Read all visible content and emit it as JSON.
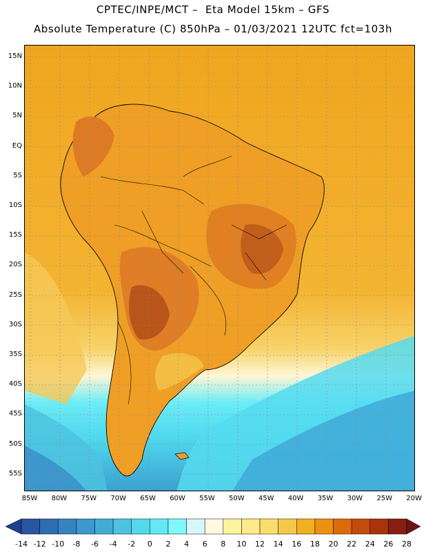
{
  "header": {
    "line1": "CPTEC/INPE/MCT –  Eta Model 15km – GFS",
    "line2": "Absolute Temperature (C) 850hPa – 01/03/2021 12UTC fct=103h"
  },
  "map": {
    "variable": "Absolute Temperature (C) 850hPa",
    "latitude_labels": [
      "15N",
      "10N",
      "5N",
      "EQ",
      "5S",
      "10S",
      "15S",
      "20S",
      "25S",
      "30S",
      "35S",
      "40S",
      "45S",
      "50S",
      "55S"
    ],
    "longitude_labels": [
      "85W",
      "80W",
      "75W",
      "70W",
      "65W",
      "60W",
      "55W",
      "50W",
      "45W",
      "40W",
      "35W",
      "30W",
      "25W",
      "20W"
    ],
    "colors": {
      "cold_ocean": "#3b9fd0",
      "cyan": "#4fe8f2",
      "pale": "#fff6d6",
      "warm": "#f5c14a",
      "base": "#f0a51e",
      "hot": "#e07818",
      "hottest": "#b4500f"
    }
  },
  "colorbar": {
    "labels": [
      "-14",
      "-12",
      "-10",
      "-8",
      "-6",
      "-4",
      "-2",
      "0",
      "2",
      "4",
      "6",
      "8",
      "10",
      "12",
      "14",
      "16",
      "18",
      "20",
      "22",
      "24",
      "26",
      "28"
    ],
    "colors": [
      "#1f3f8f",
      "#2856a0",
      "#2f6db2",
      "#3584c0",
      "#3b99cc",
      "#43add6",
      "#4cc3e0",
      "#55d8ea",
      "#62eaf3",
      "#7ff8fb",
      "#d8f7fb",
      "#fff8e4",
      "#fff49e",
      "#ffe98a",
      "#fadd6c",
      "#f5c84a",
      "#f0b022",
      "#eb900f",
      "#de6a0a",
      "#c44c0a",
      "#a8330c",
      "#862010",
      "#6e1412"
    ]
  }
}
